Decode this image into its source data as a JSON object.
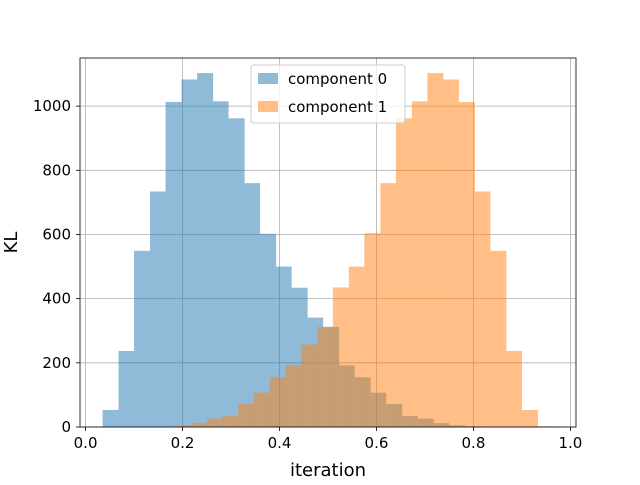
{
  "chart_data": {
    "type": "bar",
    "xlabel": "iteration",
    "ylabel": "KL",
    "xlim": [
      -0.0115,
      1.0115
    ],
    "ylim": [
      0,
      1150
    ],
    "xticks": [
      "0.0",
      "0.2",
      "0.4",
      "0.6",
      "0.8",
      "1.0"
    ],
    "xtick_values": [
      0.0,
      0.2,
      0.4,
      0.6,
      0.8,
      1.0
    ],
    "yticks": [
      "0",
      "200",
      "400",
      "600",
      "800",
      "1000"
    ],
    "ytick_values": [
      0,
      200,
      400,
      600,
      800,
      1000
    ],
    "grid": true,
    "legend_position": "top-center",
    "series": [
      {
        "name": "component 0",
        "color": "#1f77b4",
        "opacity": 0.5,
        "bin_edges": [
          0.035,
          0.068,
          0.1,
          0.133,
          0.165,
          0.198,
          0.23,
          0.263,
          0.295,
          0.328,
          0.36,
          0.393,
          0.425,
          0.458,
          0.49,
          0.523,
          0.555,
          0.588,
          0.62,
          0.653,
          0.685,
          0.718,
          0.75,
          0.783,
          0.815
        ],
        "counts": [
          53,
          237,
          549,
          734,
          1013,
          1083,
          1103,
          1015,
          962,
          760,
          602,
          500,
          434,
          341,
          312,
          192,
          155,
          107,
          72,
          34,
          26,
          12,
          5,
          2
        ]
      },
      {
        "name": "component 1",
        "color": "#ff7f0e",
        "opacity": 0.5,
        "bin_edges": [
          0.185,
          0.217,
          0.25,
          0.282,
          0.315,
          0.347,
          0.38,
          0.413,
          0.445,
          0.478,
          0.51,
          0.543,
          0.575,
          0.608,
          0.64,
          0.673,
          0.705,
          0.738,
          0.77,
          0.803,
          0.835,
          0.868,
          0.9,
          0.933,
          0.965
        ],
        "counts": [
          5,
          12,
          26,
          34,
          72,
          107,
          155,
          192,
          257,
          312,
          435,
          500,
          604,
          760,
          962,
          1015,
          1103,
          1083,
          1013,
          734,
          549,
          237,
          53,
          2
        ]
      }
    ]
  }
}
